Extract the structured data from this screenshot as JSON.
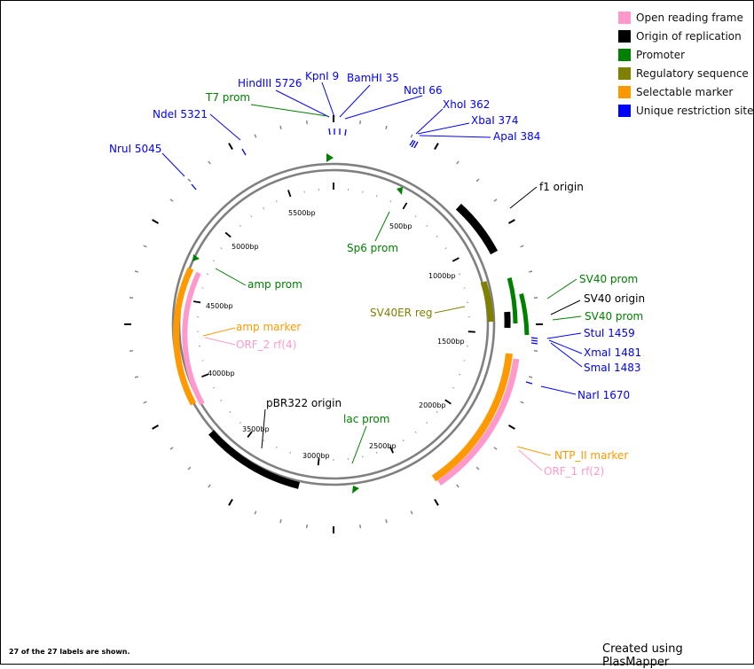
{
  "map": {
    "total_bp": 5800,
    "footer_count": "27 of the 27 labels are shown.",
    "footer_credit": "Created using PlasMapper"
  },
  "legend": [
    {
      "label": "Open reading frame",
      "color": "#ff99cc"
    },
    {
      "label": "Origin of replication",
      "color": "#000000"
    },
    {
      "label": "Promoter",
      "color": "#008000"
    },
    {
      "label": "Regulatory sequence",
      "color": "#808000"
    },
    {
      "label": "Selectable marker",
      "color": "#ff9900"
    },
    {
      "label": "Unique restriction site",
      "color": "#0000ff"
    }
  ],
  "colors": {
    "orf": "#ff99cc",
    "origin": "#000000",
    "promoter": "#008000",
    "regulatory": "#808000",
    "marker": "#ff9900",
    "site": "#0000ff",
    "backbone": "#808080"
  },
  "ticks": [
    "500bp",
    "1000bp",
    "1500bp",
    "2000bp",
    "2500bp",
    "3000bp",
    "3500bp",
    "4000bp",
    "4500bp",
    "5000bp",
    "5500bp"
  ],
  "features": [
    {
      "name": "f1 origin",
      "type": "origin",
      "start": 455,
      "end": 898
    },
    {
      "name": "SV40ER reg",
      "type": "regulatory",
      "start": 1005,
      "end": 1255
    },
    {
      "name": "SV40 origin",
      "type": "origin",
      "start": 1220,
      "end": 1310
    },
    {
      "name": "SV40 prom",
      "type": "promoter",
      "start": 1062,
      "end": 1330
    },
    {
      "name": "SV40 prom",
      "type": "promoter",
      "start": 1225,
      "end": 1400
    },
    {
      "name": "NTP_II marker",
      "type": "marker",
      "start": 1500,
      "end": 2300
    },
    {
      "name": "ORF_1 rf(2)",
      "type": "orf",
      "start": 1520,
      "end": 2340
    },
    {
      "name": "pBR322 origin",
      "type": "origin",
      "start": 2890,
      "end": 3480
    },
    {
      "name": "amp marker",
      "type": "marker",
      "start": 4045,
      "end": 4865
    },
    {
      "name": "ORF_2 rf(4)",
      "type": "orf",
      "start": 4030,
      "end": 4840
    },
    {
      "name": "T7 prom",
      "type": "promoter",
      "start": 5785,
      "end": 5800
    },
    {
      "name": "Sp6 prom",
      "type": "promoter",
      "start": 253,
      "end": 270
    },
    {
      "name": "lac prom",
      "type": "promoter",
      "start": 2637,
      "end": 2655
    },
    {
      "name": "amp prom",
      "type": "promoter",
      "start": 4870,
      "end": 4890
    }
  ],
  "sites": [
    {
      "name": "NruI 5045",
      "position": 5045
    },
    {
      "name": "NdeI 5321",
      "position": 5321
    },
    {
      "name": "HindIII 5726",
      "position": 5726
    },
    {
      "name": "KpnI 9",
      "position": 9
    },
    {
      "name": "BamHI 35",
      "position": 35
    },
    {
      "name": "NotI 66",
      "position": 66
    },
    {
      "name": "XhoI 362",
      "position": 362
    },
    {
      "name": "XbaI 374",
      "position": 374
    },
    {
      "name": "ApaI 384",
      "position": 384
    },
    {
      "name": "StuI 1459",
      "position": 1459
    },
    {
      "name": "XmaI 1481",
      "position": 1481
    },
    {
      "name": "SmaI 1483",
      "position": 1483
    },
    {
      "name": "NarI 1670",
      "position": 1670
    }
  ]
}
